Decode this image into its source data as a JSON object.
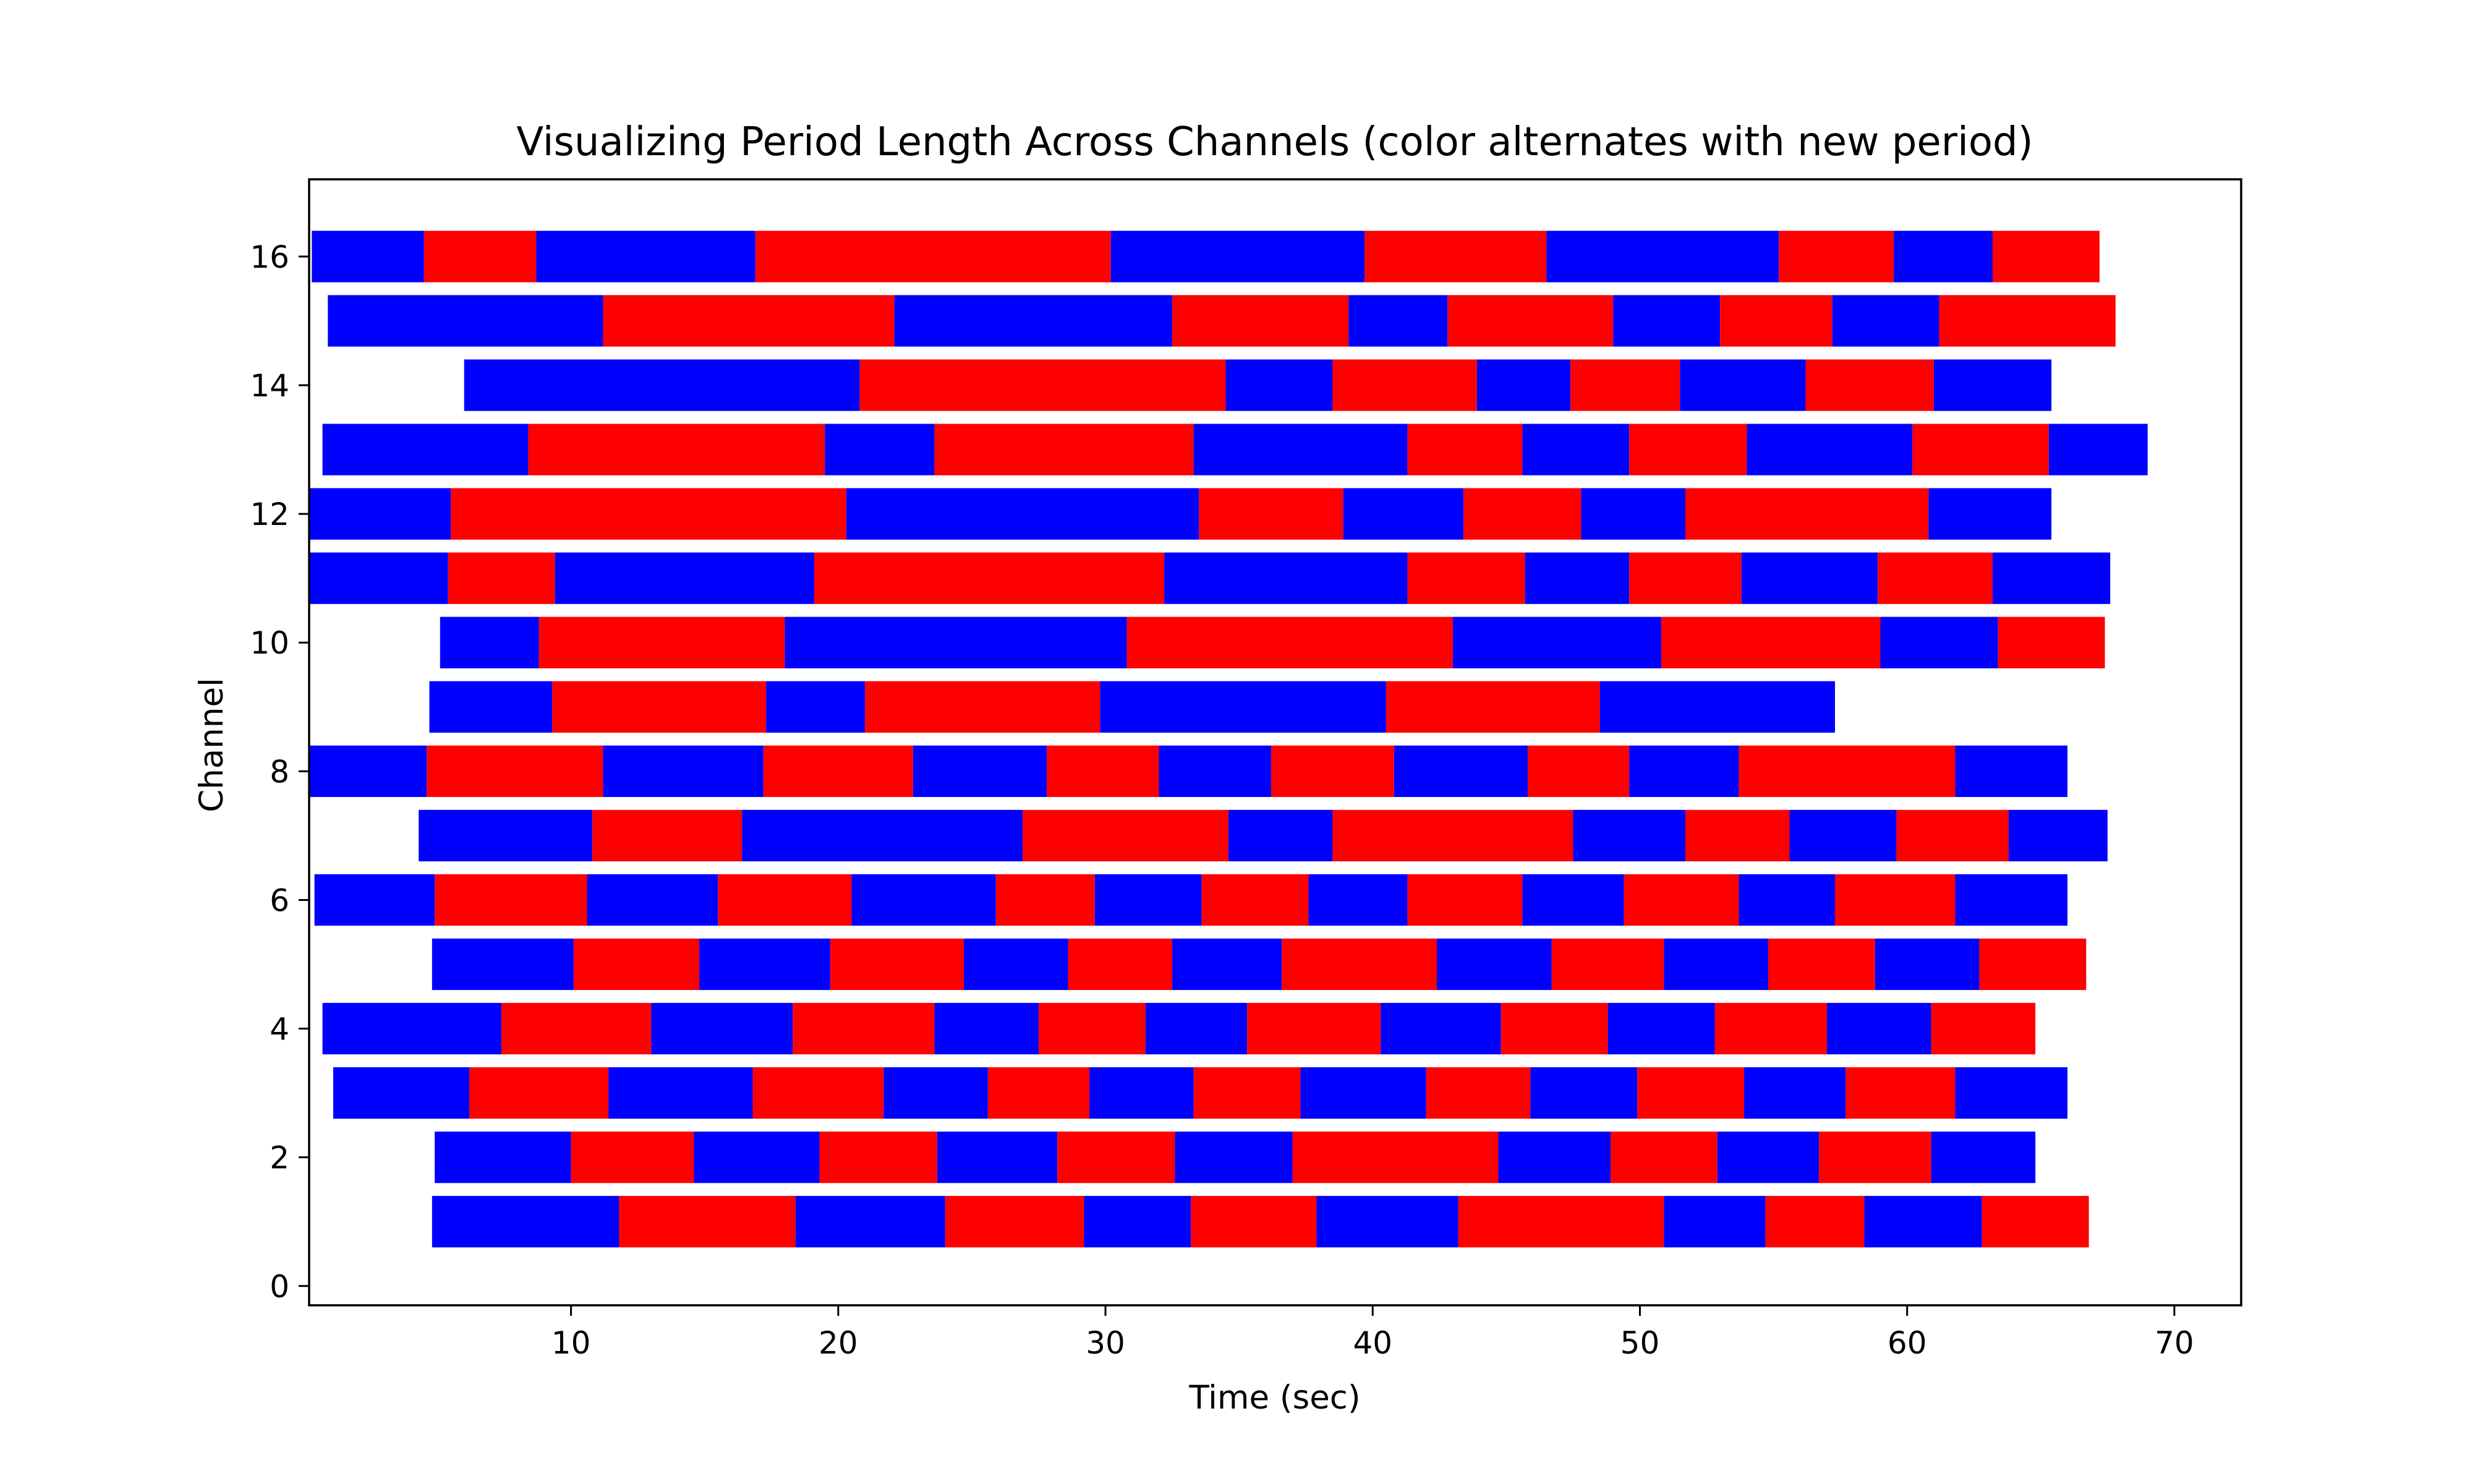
{
  "chart_data": {
    "type": "bar",
    "orientation": "horizontal",
    "title": "Visualizing Period Length Across Channels (color alternates with new period)",
    "xlabel": "Time (sec)",
    "ylabel": "Channel",
    "xlim": [
      0.2,
      72.5
    ],
    "ylim": [
      -0.3,
      17.2
    ],
    "xticks": [
      10,
      20,
      30,
      40,
      50,
      60,
      70
    ],
    "yticks": [
      0,
      2,
      4,
      6,
      8,
      10,
      12,
      14,
      16
    ],
    "grid": false,
    "colors": [
      "#0000ff",
      "#ff0000"
    ],
    "series": [
      {
        "channel": 1,
        "boundaries": [
          4.8,
          11.8,
          18.4,
          24.0,
          29.2,
          33.2,
          37.9,
          43.2,
          50.9,
          54.7,
          58.4,
          62.8,
          66.8
        ]
      },
      {
        "channel": 2,
        "boundaries": [
          4.9,
          10.0,
          14.6,
          19.3,
          23.7,
          28.2,
          32.6,
          37.0,
          44.7,
          48.9,
          52.9,
          56.7,
          60.9,
          64.8
        ]
      },
      {
        "channel": 3,
        "boundaries": [
          1.1,
          6.2,
          11.4,
          16.8,
          21.7,
          25.6,
          29.4,
          33.3,
          37.3,
          42.0,
          45.9,
          49.9,
          53.9,
          57.7,
          61.8,
          66.0
        ]
      },
      {
        "channel": 4,
        "boundaries": [
          0.7,
          7.4,
          13.0,
          18.3,
          23.6,
          27.5,
          31.5,
          35.3,
          40.3,
          44.8,
          48.8,
          52.8,
          57.0,
          60.9,
          64.8
        ]
      },
      {
        "channel": 5,
        "boundaries": [
          4.8,
          10.1,
          14.8,
          19.7,
          24.7,
          28.6,
          32.5,
          36.6,
          42.4,
          46.7,
          50.9,
          54.8,
          58.8,
          62.7,
          66.7
        ]
      },
      {
        "channel": 6,
        "boundaries": [
          0.4,
          4.9,
          10.6,
          15.5,
          20.5,
          25.9,
          29.6,
          33.6,
          37.6,
          41.3,
          45.6,
          49.4,
          53.7,
          57.3,
          61.8,
          66.0
        ]
      },
      {
        "channel": 7,
        "boundaries": [
          4.3,
          10.8,
          16.4,
          26.9,
          34.6,
          38.5,
          47.5,
          51.7,
          55.6,
          59.6,
          63.8,
          67.5
        ]
      },
      {
        "channel": 8,
        "boundaries": [
          0.2,
          4.6,
          11.2,
          17.2,
          22.8,
          27.8,
          32.0,
          36.2,
          40.8,
          45.8,
          49.6,
          53.7,
          61.8,
          66.0
        ]
      },
      {
        "channel": 9,
        "boundaries": [
          4.7,
          9.3,
          17.3,
          21.0,
          29.8,
          40.5,
          48.5,
          57.3
        ]
      },
      {
        "channel": 10,
        "boundaries": [
          5.1,
          8.8,
          18.0,
          30.8,
          43.0,
          50.8,
          59.0,
          63.4,
          67.4
        ]
      },
      {
        "channel": 11,
        "boundaries": [
          0.2,
          5.4,
          9.4,
          19.1,
          32.2,
          41.3,
          45.7,
          49.6,
          53.8,
          58.9,
          63.2,
          67.6
        ]
      },
      {
        "channel": 12,
        "boundaries": [
          0.2,
          5.5,
          20.3,
          33.5,
          38.9,
          43.4,
          47.8,
          51.7,
          60.8,
          65.4
        ]
      },
      {
        "channel": 13,
        "boundaries": [
          0.7,
          8.4,
          19.5,
          23.6,
          33.3,
          41.3,
          45.6,
          49.6,
          54.0,
          60.2,
          65.3,
          69.0
        ]
      },
      {
        "channel": 14,
        "boundaries": [
          6.0,
          20.8,
          34.5,
          38.5,
          43.9,
          47.4,
          51.5,
          56.2,
          61.0,
          65.4
        ]
      },
      {
        "channel": 15,
        "boundaries": [
          0.9,
          11.2,
          22.1,
          32.5,
          39.1,
          42.8,
          49.0,
          53.0,
          57.2,
          61.2,
          67.8
        ]
      },
      {
        "channel": 16,
        "boundaries": [
          0.3,
          4.5,
          8.7,
          16.9,
          30.2,
          39.7,
          46.5,
          55.2,
          59.5,
          63.2,
          67.2
        ]
      }
    ]
  }
}
